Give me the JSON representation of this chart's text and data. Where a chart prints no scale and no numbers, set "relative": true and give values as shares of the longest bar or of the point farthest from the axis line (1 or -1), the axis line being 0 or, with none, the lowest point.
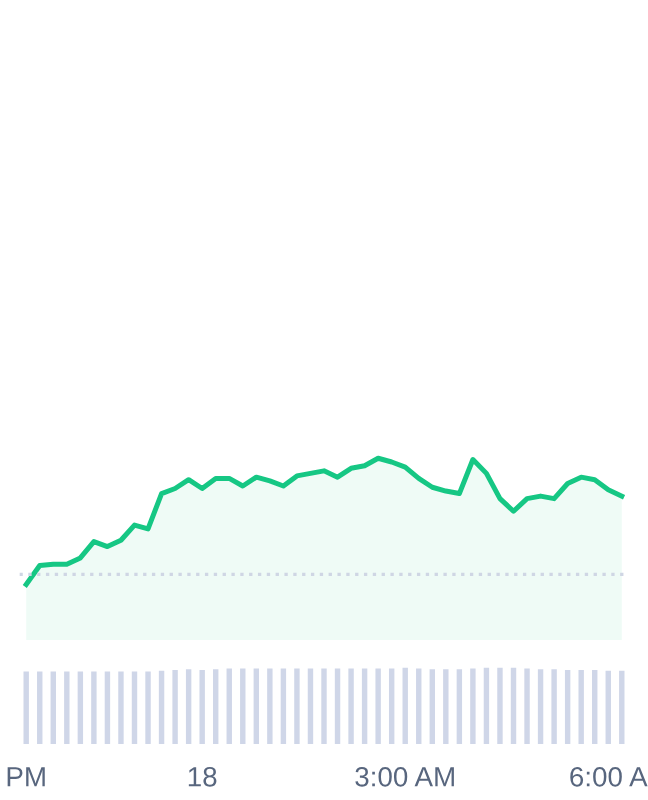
{
  "chart_data": [
    {
      "type": "area",
      "relative": true,
      "tick_labels": false,
      "series": [
        {
          "color": "#16c784",
          "values": [
            0,
            0.15,
            0.16,
            0.16,
            0.21,
            0.34,
            0.3,
            0.35,
            0.47,
            0.44,
            0.72,
            0.76,
            0.83,
            0.76,
            0.84,
            0.84,
            0.78,
            0.85,
            0.82,
            0.78,
            0.86,
            0.88,
            0.9,
            0.85,
            0.92,
            0.94,
            1.0,
            0.97,
            0.93,
            0.84,
            0.77,
            0.74,
            0.72,
            0.99,
            0.88,
            0.68,
            0.58,
            0.68,
            0.7,
            0.68,
            0.8,
            0.85,
            0.83,
            0.75,
            0.7
          ]
        }
      ],
      "ref_lines": [
        {
          "axis": "y",
          "value": 0.08,
          "color": "#cfd6e4",
          "line_style": "dotted"
        }
      ]
    },
    {
      "type": "bar",
      "relative": true,
      "tick_labels": "x",
      "categories": [
        "PM",
        null,
        null,
        null,
        null,
        null,
        null,
        null,
        null,
        null,
        null,
        null,
        null,
        "18",
        null,
        null,
        null,
        null,
        null,
        null,
        null,
        null,
        null,
        null,
        null,
        null,
        null,
        null,
        "3:00 AM",
        null,
        null,
        null,
        null,
        null,
        null,
        null,
        null,
        null,
        null,
        null,
        null,
        null,
        null,
        "6:00 A",
        null
      ],
      "series": [
        {
          "color": "#cfd6e8",
          "values": [
            0.95,
            0.95,
            0.95,
            0.95,
            0.95,
            0.95,
            0.95,
            0.95,
            0.95,
            0.95,
            0.96,
            0.97,
            0.98,
            0.97,
            0.98,
            0.99,
            0.99,
            0.99,
            0.99,
            0.99,
            0.99,
            0.99,
            0.99,
            0.99,
            0.99,
            0.99,
            0.99,
            0.99,
            1.0,
            0.99,
            0.98,
            0.98,
            0.98,
            0.99,
            1.0,
            1.0,
            1.0,
            0.99,
            0.98,
            0.98,
            0.97,
            0.97,
            0.97,
            0.96,
            0.96
          ]
        }
      ]
    }
  ]
}
